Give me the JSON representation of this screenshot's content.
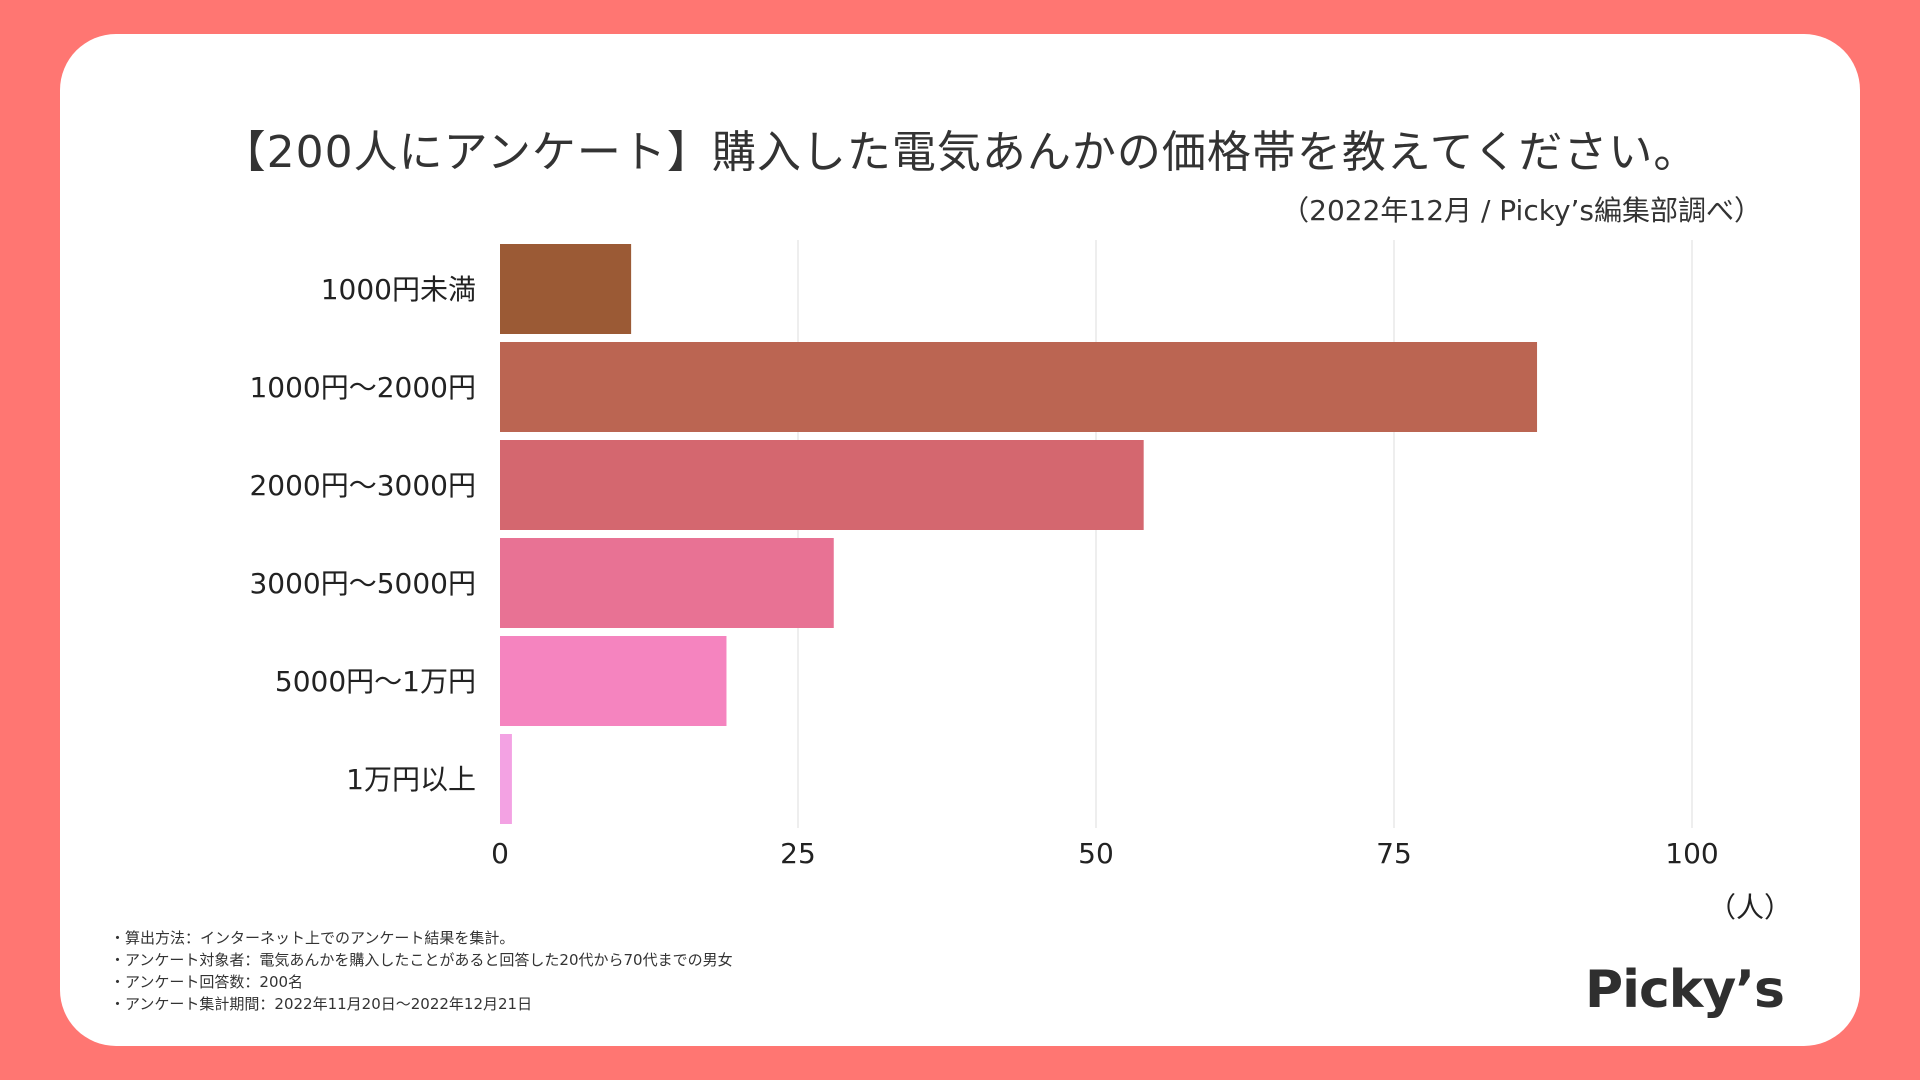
{
  "chart_data": {
    "type": "bar",
    "orientation": "horizontal",
    "title": "【200人にアンケート】購入した電気あんかの価格帯を教えてください。",
    "source": "（2022年12月 / Picky’s編集部調べ）",
    "categories": [
      "1000円未満",
      "1000円〜2000円",
      "2000円〜3000円",
      "3000円〜5000円",
      "5000円〜1万円",
      "1万円以上"
    ],
    "values": [
      11,
      87,
      54,
      28,
      19,
      1
    ],
    "colors": [
      "#9b5a35",
      "#bb6552",
      "#d4676f",
      "#e87294",
      "#f584bf",
      "#f3a2e3"
    ],
    "xlim": [
      0,
      100
    ],
    "xticks": [
      0,
      25,
      50,
      75,
      100
    ],
    "xlabel": "（人）",
    "grid": true
  },
  "notes": [
    "・算出方法：インターネット上でのアンケート結果を集計。",
    "・アンケート対象者：電気あんかを購入したことがあると回答した20代から70代までの男女",
    "・アンケート回答数：200名",
    "・アンケート集計期間：2022年11月20日〜2022年12月21日"
  ],
  "logo": "Picky’s"
}
